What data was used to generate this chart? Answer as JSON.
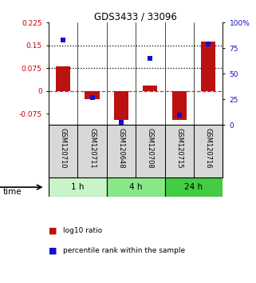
{
  "title": "GDS3433 / 33096",
  "samples": [
    "GSM120710",
    "GSM120711",
    "GSM120648",
    "GSM120708",
    "GSM120715",
    "GSM120716"
  ],
  "log10_ratio": [
    0.082,
    -0.028,
    -0.095,
    0.018,
    -0.095,
    0.163
  ],
  "percentile_rank": [
    83,
    27,
    3,
    65,
    10,
    79
  ],
  "groups": [
    {
      "label": "1 h",
      "indices": [
        0,
        1
      ],
      "color": "#c8f5c8"
    },
    {
      "label": "4 h",
      "indices": [
        2,
        3
      ],
      "color": "#88e888"
    },
    {
      "label": "24 h",
      "indices": [
        4,
        5
      ],
      "color": "#44cc44"
    }
  ],
  "left_ylim": [
    -0.1125,
    0.225
  ],
  "right_ylim": [
    0,
    100
  ],
  "left_yticks": [
    -0.075,
    0,
    0.075,
    0.15,
    0.225
  ],
  "right_yticks": [
    0,
    25,
    50,
    75,
    100
  ],
  "hlines": [
    0.075,
    0.15
  ],
  "bar_color": "#bb1111",
  "dot_color": "#1111cc",
  "bar_width": 0.5,
  "background_color": "#ffffff",
  "panel_bg": "#d8d8d8"
}
